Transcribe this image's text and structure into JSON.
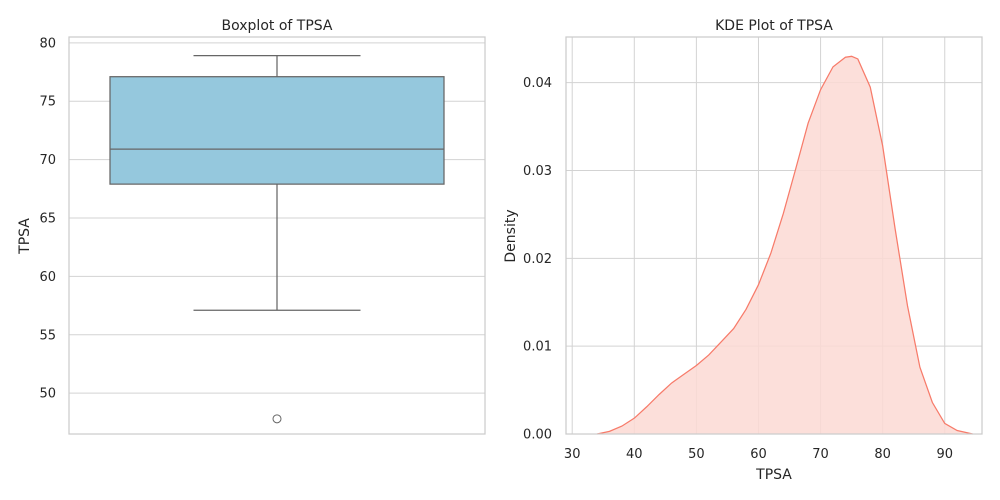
{
  "chart_data": [
    {
      "type": "box",
      "title": "Boxplot of TPSA",
      "xlabel": "",
      "ylabel": "TPSA",
      "ylim": [
        46.5,
        80.5
      ],
      "yticks": [
        50,
        55,
        60,
        65,
        70,
        75,
        80
      ],
      "grid": true,
      "box": {
        "whisker_low": 57.1,
        "q1": 67.9,
        "median": 70.9,
        "q3": 77.1,
        "whisker_high": 78.9,
        "outliers": [
          47.8
        ]
      },
      "colors": {
        "box_fill": "#95c8dd",
        "line": "#666666"
      }
    },
    {
      "type": "area",
      "title": "KDE Plot of TPSA",
      "xlabel": "TPSA",
      "ylabel": "Density",
      "xlim": [
        29,
        96
      ],
      "ylim": [
        0,
        0.0452
      ],
      "xticks": [
        30,
        40,
        50,
        60,
        70,
        80,
        90
      ],
      "yticks": [
        0.0,
        0.01,
        0.02,
        0.03,
        0.04
      ],
      "grid": true,
      "x": [
        34,
        36,
        38,
        40,
        42,
        44,
        46,
        48,
        50,
        52,
        54,
        56,
        58,
        60,
        62,
        64,
        66,
        68,
        70,
        72,
        74,
        75,
        76,
        78,
        80,
        82,
        84,
        86,
        88,
        90,
        92,
        94.5
      ],
      "y": [
        0.0,
        0.0003,
        0.0009,
        0.0018,
        0.0031,
        0.0045,
        0.0058,
        0.0068,
        0.0078,
        0.009,
        0.0105,
        0.012,
        0.0142,
        0.017,
        0.0206,
        0.0251,
        0.0302,
        0.0354,
        0.0392,
        0.0418,
        0.0429,
        0.043,
        0.0427,
        0.0395,
        0.0328,
        0.0234,
        0.0146,
        0.0076,
        0.0036,
        0.0012,
        0.0004,
        0.0
      ],
      "colors": {
        "line": "#f77b6a",
        "fill": "#fbd9d4"
      }
    }
  ]
}
